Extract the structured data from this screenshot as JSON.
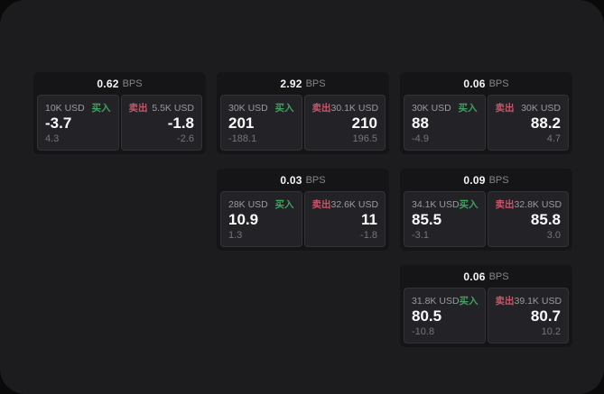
{
  "labels": {
    "bps_unit": "BPS",
    "buy": "买入",
    "sell": "卖出"
  },
  "colors": {
    "background": "#0a0a0b",
    "panel": "#1c1c1e",
    "card": "#151517",
    "subcard": "#232327",
    "buy_green": "#3ea35d",
    "sell_red": "#cc5468",
    "price_white": "#fbfbfb",
    "label_gray": "#9a9a9f",
    "delta_gray": "#74747a"
  },
  "cards": [
    {
      "bps": "0.62",
      "buy": {
        "amount": "10K USD",
        "price": "-3.7",
        "delta": "4.3"
      },
      "sell": {
        "amount": "5.5K USD",
        "price": "-1.8",
        "delta": "-2.6"
      }
    },
    {
      "bps": "2.92",
      "buy": {
        "amount": "30K USD",
        "price": "201",
        "delta": "-188.1"
      },
      "sell": {
        "amount": "30.1K USD",
        "price": "210",
        "delta": "196.5"
      }
    },
    {
      "bps": "0.06",
      "buy": {
        "amount": "30K USD",
        "price": "88",
        "delta": "-4.9"
      },
      "sell": {
        "amount": "30K USD",
        "price": "88.2",
        "delta": "4.7"
      }
    },
    {
      "bps": "0.03",
      "buy": {
        "amount": "28K USD",
        "price": "10.9",
        "delta": "1.3"
      },
      "sell": {
        "amount": "32.6K USD",
        "price": "11",
        "delta": "-1.8"
      }
    },
    {
      "bps": "0.09",
      "buy": {
        "amount": "34.1K USD",
        "price": "85.5",
        "delta": "-3.1"
      },
      "sell": {
        "amount": "32.8K USD",
        "price": "85.8",
        "delta": "3.0"
      }
    },
    {
      "bps": "0.06",
      "buy": {
        "amount": "31.8K USD",
        "price": "80.5",
        "delta": "-10.8"
      },
      "sell": {
        "amount": "39.1K USD",
        "price": "80.7",
        "delta": "10.2"
      }
    }
  ]
}
